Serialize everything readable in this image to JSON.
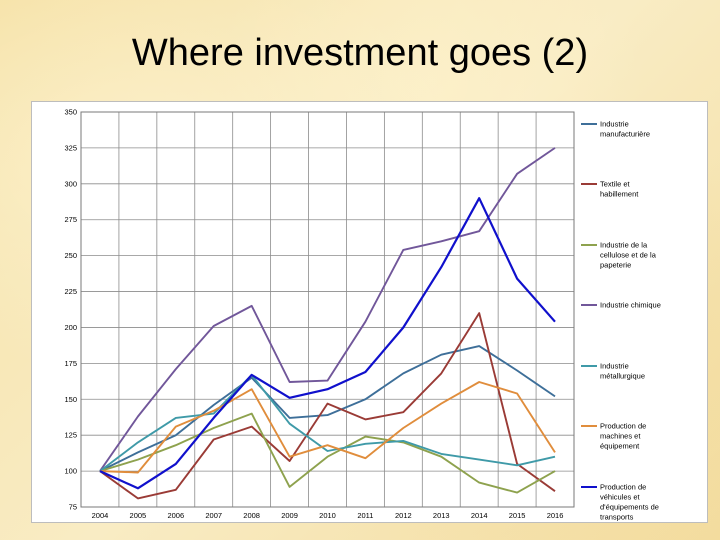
{
  "slide": {
    "title": "Where investment goes (2)"
  },
  "chart_data": {
    "type": "line",
    "title": "",
    "xlabel": "",
    "ylabel": "",
    "categories": [
      "2004",
      "2005",
      "2006",
      "2007",
      "2008",
      "2009",
      "2010",
      "2011",
      "2012",
      "2013",
      "2014",
      "2015",
      "2016"
    ],
    "ylim": [
      75,
      350
    ],
    "yticks": [
      75,
      100,
      125,
      150,
      175,
      200,
      225,
      250,
      275,
      300,
      325,
      350
    ],
    "grid": true,
    "legend_position": "right",
    "series": [
      {
        "name": "Industrie manufacturière",
        "legend_lines": [
          "Industrie",
          "manufacturière"
        ],
        "color": "#3e6f99",
        "values": [
          100,
          113,
          125,
          146,
          165,
          137,
          139,
          150,
          168,
          181,
          187,
          170,
          152
        ]
      },
      {
        "name": "Textile et habillement",
        "legend_lines": [
          "Textile et",
          "habillement"
        ],
        "color": "#9a3b36",
        "values": [
          100,
          81,
          87,
          122,
          131,
          107,
          147,
          136,
          141,
          168,
          210,
          105,
          86
        ]
      },
      {
        "name": "Industrie de la cellulose et de la papeterie",
        "legend_lines": [
          "Industrie de la",
          "cellulose et de la",
          "papeterie"
        ],
        "color": "#8ea24e",
        "values": [
          100,
          108,
          118,
          130,
          140,
          89,
          110,
          124,
          120,
          110,
          92,
          85,
          100
        ]
      },
      {
        "name": "Industrie chimique",
        "legend_lines": [
          "Industrie chimique"
        ],
        "color": "#71579a",
        "values": [
          100,
          138,
          171,
          201,
          215,
          162,
          163,
          204,
          254,
          260,
          267,
          307,
          325
        ]
      },
      {
        "name": "Industrie métallurgique",
        "legend_lines": [
          "Industrie",
          "métallurgique"
        ],
        "color": "#3f9aa8",
        "values": [
          100,
          120,
          137,
          140,
          167,
          133,
          114,
          119,
          121,
          112,
          108,
          104,
          110
        ]
      },
      {
        "name": "Production de machines et équipement",
        "legend_lines": [
          "Production de",
          "machines et",
          "équipement"
        ],
        "color": "#e08d3c",
        "values": [
          100,
          99,
          131,
          142,
          157,
          110,
          118,
          109,
          130,
          147,
          162,
          154,
          113
        ]
      },
      {
        "name": "Production de véhicules et d'équipements de transports",
        "legend_lines": [
          "Production de",
          "véhicules et",
          "d'équipements de",
          "transports"
        ],
        "color": "#1010cc",
        "values": [
          100,
          88,
          105,
          137,
          167,
          151,
          157,
          169,
          200,
          242,
          290,
          234,
          204
        ]
      }
    ]
  }
}
